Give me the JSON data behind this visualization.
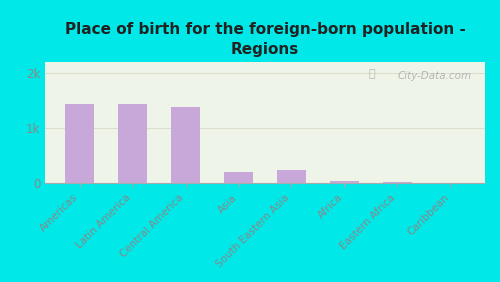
{
  "title": "Place of birth for the foreign-born population -\nRegions",
  "categories": [
    "Americas",
    "Latin America",
    "Central America",
    "Asia",
    "South Eastern Asia",
    "Africa",
    "Eastern Africa",
    "Caribbean"
  ],
  "values": [
    1440,
    1440,
    1390,
    210,
    240,
    35,
    30,
    10
  ],
  "bar_color": "#c8a8d8",
  "background_outer": "#00e8e8",
  "background_inner": "#eef5e8",
  "grid_color": "#ddddcc",
  "yticks": [
    0,
    1000,
    2000
  ],
  "ylim": [
    0,
    2200
  ],
  "bar_width": 0.55,
  "watermark": "City-Data.com",
  "title_fontsize": 11,
  "tick_color": "#888888",
  "xlabel_fontsize": 7.5
}
